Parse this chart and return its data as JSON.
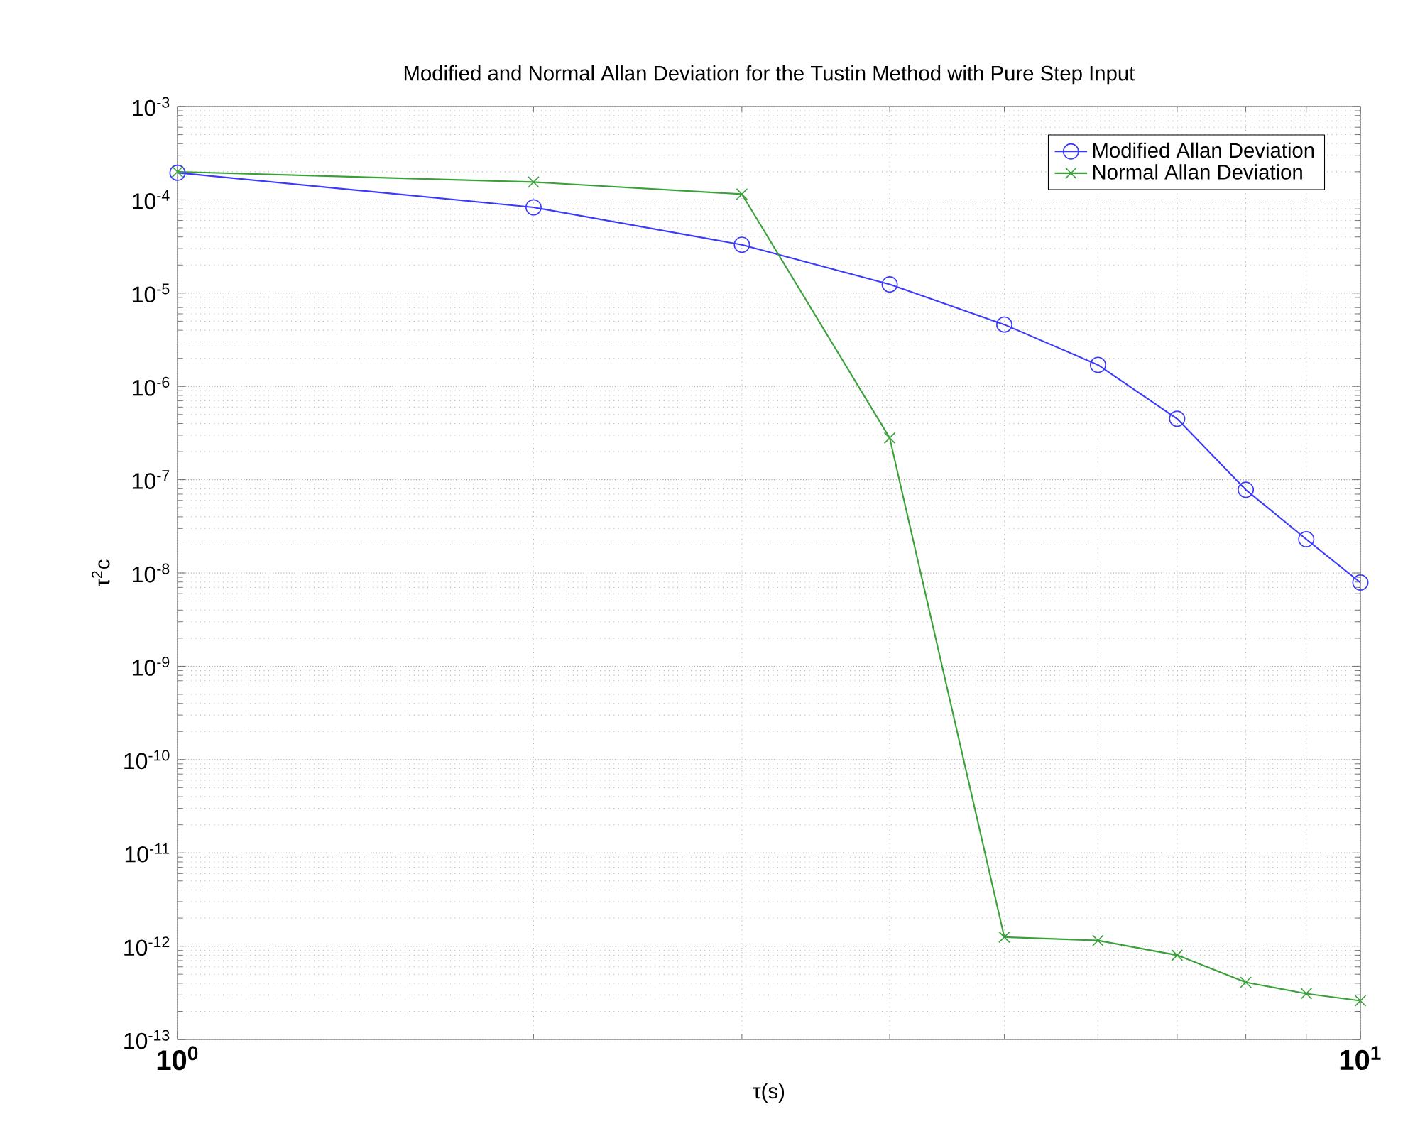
{
  "chart_data": {
    "type": "line",
    "title": "Modified and Normal Allan Deviation for the Tustin Method with Pure Step Input",
    "xlabel": "τ(s)",
    "ylabel": "τ$^{2}$c",
    "log": "xy",
    "grid": true,
    "legend": "top right",
    "x": [
      1,
      2,
      3,
      4,
      5,
      6,
      7,
      8,
      9,
      10
    ],
    "xlim": [
      1,
      10
    ],
    "xticks": [
      {
        "value": 1,
        "label": "10$^{0}$"
      },
      {
        "value": 10,
        "label": "10$^{1}$"
      }
    ],
    "ylim": [
      1e-13,
      0.001
    ],
    "yticks": [
      {
        "value": 1e-13,
        "label": "10$^{-13}$"
      },
      {
        "value": 1e-12,
        "label": "10$^{-12}$"
      },
      {
        "value": 1e-11,
        "label": "10$^{-11}$"
      },
      {
        "value": 1e-10,
        "label": "10$^{-10}$"
      },
      {
        "value": 1e-09,
        "label": "10$^{-9}$"
      },
      {
        "value": 1e-08,
        "label": "10$^{-8}$"
      },
      {
        "value": 1e-07,
        "label": "10$^{-7}$"
      },
      {
        "value": 1e-06,
        "label": "10$^{-6}$"
      },
      {
        "value": 1e-05,
        "label": "10$^{-5}$"
      },
      {
        "value": 0.0001,
        "label": "10$^{-4}$"
      },
      {
        "value": 0.001,
        "label": "10$^{-3}$"
      }
    ],
    "series": [
      {
        "name": "Modified Allan Deviation",
        "color": "#3a3aff",
        "marker": "circle",
        "values": [
          0.000195,
          8.3e-05,
          3.3e-05,
          1.24e-05,
          4.6e-06,
          1.7e-06,
          4.5e-07,
          7.8e-08,
          2.3e-08,
          7.9e-09
        ]
      },
      {
        "name": "Normal Allan Deviation",
        "color": "#3aa03a",
        "marker": "cross",
        "values": [
          0.0002,
          0.000155,
          0.000115,
          2.8e-07,
          1.25e-12,
          1.15e-12,
          8e-13,
          4.1e-13,
          3.1e-13,
          2.6e-13
        ]
      }
    ]
  }
}
